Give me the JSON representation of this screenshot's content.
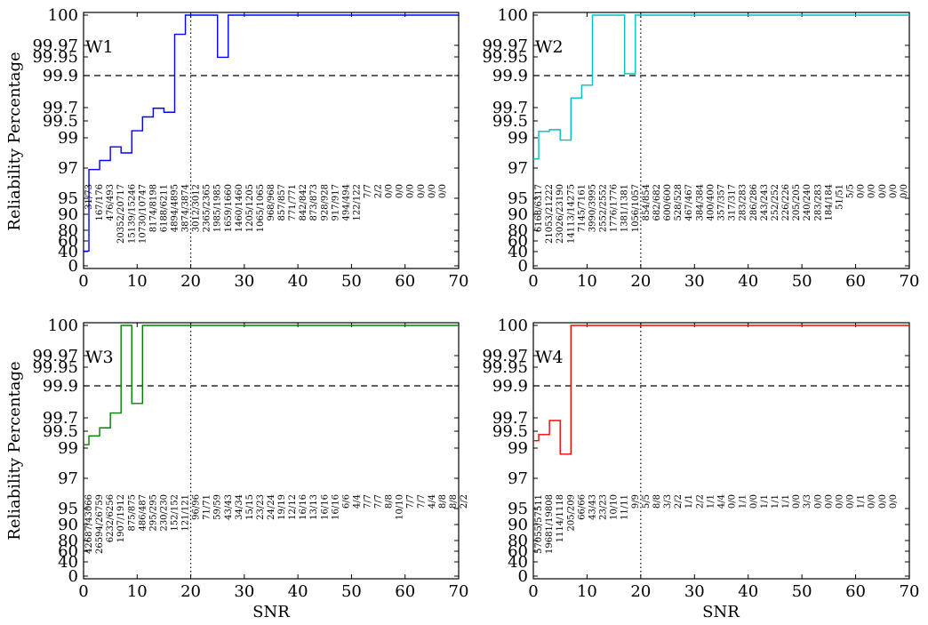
{
  "figure": {
    "ylabel_left": "Reliability Percentage",
    "xlabel_bottom": "SNR"
  },
  "chart_data": [
    {
      "type": "line",
      "panel_label": "W1",
      "color": "#0000ff",
      "xlabel": "",
      "ylabel": "Reliability Percentage",
      "xlim": [
        0,
        70
      ],
      "x_ticks": [
        0,
        10,
        20,
        30,
        40,
        50,
        60,
        70
      ],
      "y_ticks": [
        "0",
        "40",
        "60",
        "80",
        "90",
        "95",
        "97",
        "99",
        "99.5",
        "99.7",
        "99.9",
        "99.95",
        "99.97",
        "100"
      ],
      "reference_lines": {
        "horizontal_dashed_y": 99.9,
        "vertical_dotted_x": 20
      },
      "series": [
        {
          "x": [
            0,
            1,
            3,
            5,
            7,
            9,
            11,
            13,
            15,
            17,
            19,
            21,
            23,
            25,
            27,
            29,
            31,
            33,
            35,
            37,
            39,
            41,
            43,
            45,
            47,
            49,
            51,
            53,
            55,
            57,
            59,
            61,
            63,
            65,
            67,
            69,
            70
          ],
          "y": [
            40.9,
            96.9,
            97.5,
            98.4,
            98.0,
            99.21,
            99.56,
            99.69,
            99.63,
            99.981,
            100,
            100,
            100,
            99.949,
            100,
            100,
            100,
            100,
            100,
            100,
            100,
            100,
            100,
            100,
            100,
            100,
            100,
            100,
            100,
            100,
            100,
            100,
            100,
            100,
            100,
            100,
            100
          ]
        }
      ],
      "annotations": [
        "31/73",
        "167/176",
        "476/493",
        "20352/20717",
        "15139/15246",
        "10730/10747",
        "8174/8198",
        "6188/6211",
        "4894/4895",
        "3874/3874",
        "3012/3012",
        "2365/2365",
        "1985/1985",
        "1659/1660",
        "1460/1460",
        "1205/1205",
        "1065/1065",
        "968/968",
        "857/857",
        "771/771",
        "842/842",
        "873/873",
        "928/928",
        "917/917",
        "494/494",
        "122/122",
        "7/7",
        "2/2",
        "0/0",
        "0/0",
        "0/0",
        "0/0",
        "0/0",
        "0/0"
      ]
    },
    {
      "type": "line",
      "panel_label": "W2",
      "color": "#00bfbf",
      "xlabel": "",
      "ylabel": "",
      "xlim": [
        0,
        70
      ],
      "x_ticks": [
        0,
        10,
        20,
        30,
        40,
        50,
        60,
        70
      ],
      "y_ticks": [
        "0",
        "40",
        "60",
        "80",
        "90",
        "95",
        "97",
        "99",
        "99.5",
        "99.7",
        "99.9",
        "99.95",
        "99.97",
        "100"
      ],
      "reference_lines": {
        "horizontal_dashed_y": 99.9,
        "vertical_dotted_x": 20
      },
      "series": [
        {
          "x": [
            0,
            1,
            3,
            5,
            7,
            9,
            11,
            13,
            15,
            17,
            19,
            21,
            23,
            25,
            27,
            29,
            31,
            33,
            35,
            37,
            39,
            41,
            43,
            45,
            47,
            49,
            51,
            53,
            55,
            57,
            59,
            61,
            63,
            65,
            67,
            69,
            70
          ],
          "y": [
            97.6,
            99.19,
            99.24,
            98.85,
            99.76,
            99.84,
            100,
            100,
            100,
            99.905,
            100,
            100,
            100,
            100,
            100,
            100,
            100,
            100,
            100,
            100,
            100,
            100,
            100,
            100,
            100,
            100,
            100,
            100,
            100,
            100,
            100,
            100,
            100,
            100,
            100,
            100,
            100
          ]
        }
      ],
      "annotations": [
        "6168/6317",
        "21053/21222",
        "23026/23190",
        "14113/14275",
        "7145/7161",
        "3990/3995",
        "2552/2552",
        "1776/1776",
        "1381/1381",
        "1056/1057",
        "854/854",
        "682/682",
        "600/600",
        "528/528",
        "467/467",
        "384/384",
        "400/400",
        "357/357",
        "317/317",
        "283/283",
        "286/286",
        "243/243",
        "252/252",
        "226/226",
        "205/205",
        "240/240",
        "283/283",
        "184/184",
        "51/51",
        "5/5",
        "0/0",
        "0/0",
        "0/0",
        "0/0",
        "0/0"
      ]
    },
    {
      "type": "line",
      "panel_label": "W3",
      "color": "#008000",
      "xlabel": "SNR",
      "ylabel": "Reliability Percentage",
      "xlim": [
        0,
        70
      ],
      "x_ticks": [
        0,
        10,
        20,
        30,
        40,
        50,
        60,
        70
      ],
      "y_ticks": [
        "0",
        "40",
        "60",
        "80",
        "90",
        "95",
        "97",
        "99",
        "99.5",
        "99.7",
        "99.9",
        "99.95",
        "99.97",
        "100"
      ],
      "reference_lines": {
        "horizontal_dashed_y": 99.9,
        "vertical_dotted_x": 20
      },
      "series": [
        {
          "x": [
            0,
            1,
            3,
            5,
            7,
            9,
            11,
            13,
            15,
            17,
            19,
            21,
            23,
            25,
            27,
            29,
            31,
            33,
            35,
            37,
            39,
            41,
            43,
            45,
            47,
            49,
            51,
            53,
            55,
            57,
            59,
            61,
            63,
            65,
            67,
            69,
            70
          ],
          "y": [
            99.1,
            99.36,
            99.55,
            99.73,
            100,
            99.79,
            100,
            100,
            100,
            100,
            100,
            100,
            100,
            100,
            100,
            100,
            100,
            100,
            100,
            100,
            100,
            100,
            100,
            100,
            100,
            100,
            100,
            100,
            100,
            100,
            100,
            100,
            100,
            100,
            100,
            100,
            100
          ]
        }
      ],
      "annotations": [
        "42687/43066",
        "26594/26759",
        "6232/6256",
        "1907/1912",
        "875/875",
        "486/487",
        "295/295",
        "230/230",
        "152/152",
        "121/121",
        "96/96",
        "71/71",
        "59/59",
        "43/43",
        "34/34",
        "15/15",
        "23/23",
        "24/24",
        "19/19",
        "12/12",
        "16/16",
        "13/13",
        "16/16",
        "16/16",
        "6/6",
        "4/4",
        "7/7",
        "7/7",
        "8/8",
        "10/10",
        "7/7",
        "7/7",
        "4/4",
        "8/8",
        "8/8",
        "2/2"
      ]
    },
    {
      "type": "line",
      "panel_label": "W4",
      "color": "#ff0000",
      "xlabel": "SNR",
      "ylabel": "",
      "xlim": [
        0,
        70
      ],
      "x_ticks": [
        0,
        10,
        20,
        30,
        40,
        50,
        60,
        70
      ],
      "y_ticks": [
        "0",
        "40",
        "60",
        "80",
        "90",
        "95",
        "97",
        "99",
        "99.5",
        "99.7",
        "99.9",
        "99.95",
        "99.97",
        "100"
      ],
      "reference_lines": {
        "horizontal_dashed_y": 99.9,
        "vertical_dotted_x": 20
      },
      "series": [
        {
          "x": [
            0,
            1,
            3,
            5,
            7,
            9,
            11,
            13,
            15,
            17,
            19,
            21,
            23,
            25,
            27,
            29,
            31,
            33,
            35,
            37,
            39,
            41,
            43,
            45,
            47,
            49,
            51,
            53,
            55,
            57,
            59,
            61,
            63,
            65,
            67,
            69,
            70
          ],
          "y": [
            99.22,
            99.4,
            99.66,
            98.6,
            100,
            100,
            100,
            100,
            100,
            100,
            100,
            100,
            100,
            100,
            100,
            100,
            100,
            100,
            100,
            100,
            100,
            100,
            100,
            100,
            100,
            100,
            100,
            100,
            100,
            100,
            100,
            100,
            100,
            100,
            100,
            100,
            100
          ]
        }
      ],
      "annotations": [
        "57055/57511",
        "19681/19808",
        "1114/1118",
        "205/209",
        "66/66",
        "43/43",
        "23/23",
        "10/10",
        "11/11",
        "9/9",
        "5/5",
        "8/8",
        "3/3",
        "2/2",
        "1/1",
        "2/2",
        "1/1",
        "4/4",
        "0/0",
        "1/1",
        "0/0",
        "1/1",
        "1/1",
        "1/1",
        "0/0",
        "3/3",
        "0/0",
        "0/0",
        "0/0",
        "0/0",
        "1/1",
        "0/0",
        "0/0",
        "0/0"
      ]
    }
  ]
}
